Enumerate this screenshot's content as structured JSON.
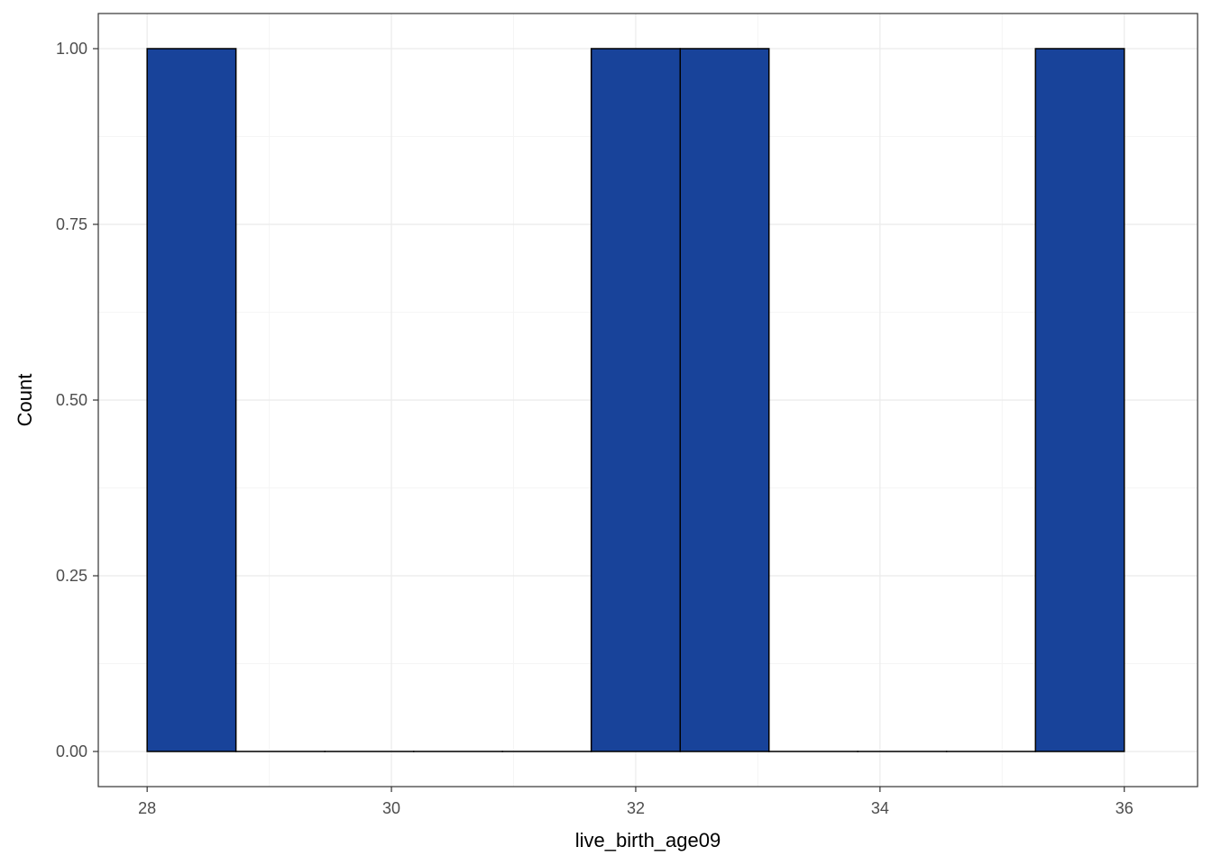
{
  "chart_data": {
    "type": "bar",
    "subtype": "histogram",
    "title": "",
    "xlabel": "live_birth_age09",
    "ylabel": "Count",
    "xlim": [
      27.6,
      36.6
    ],
    "ylim": [
      -0.05,
      1.05
    ],
    "x_ticks": [
      28,
      30,
      32,
      34,
      36
    ],
    "x_tick_labels": [
      "28",
      "30",
      "32",
      "34",
      "36"
    ],
    "y_ticks": [
      0,
      0.25,
      0.5,
      0.75,
      1
    ],
    "y_tick_labels": [
      "0.00",
      "0.25",
      "0.50",
      "0.75",
      "1.00"
    ],
    "bins": [
      {
        "x0": 28.0,
        "x1": 28.727,
        "count": 1
      },
      {
        "x0": 28.727,
        "x1": 29.455,
        "count": 0
      },
      {
        "x0": 29.455,
        "x1": 30.182,
        "count": 0
      },
      {
        "x0": 30.182,
        "x1": 30.909,
        "count": 0
      },
      {
        "x0": 30.909,
        "x1": 31.636,
        "count": 0
      },
      {
        "x0": 31.636,
        "x1": 32.364,
        "count": 1
      },
      {
        "x0": 32.364,
        "x1": 33.091,
        "count": 1
      },
      {
        "x0": 33.091,
        "x1": 33.818,
        "count": 0
      },
      {
        "x0": 33.818,
        "x1": 34.545,
        "count": 0
      },
      {
        "x0": 34.545,
        "x1": 35.273,
        "count": 0
      },
      {
        "x0": 35.273,
        "x1": 36.0,
        "count": 1
      }
    ],
    "grid": true,
    "legend": "none",
    "colors": {
      "bar_fill": "#18439a",
      "bar_stroke": "#000000",
      "grid_major": "#ebebeb",
      "grid_minor": "#f5f5f5",
      "panel_border": "#333333",
      "tick_label": "#4d4d4d"
    }
  }
}
